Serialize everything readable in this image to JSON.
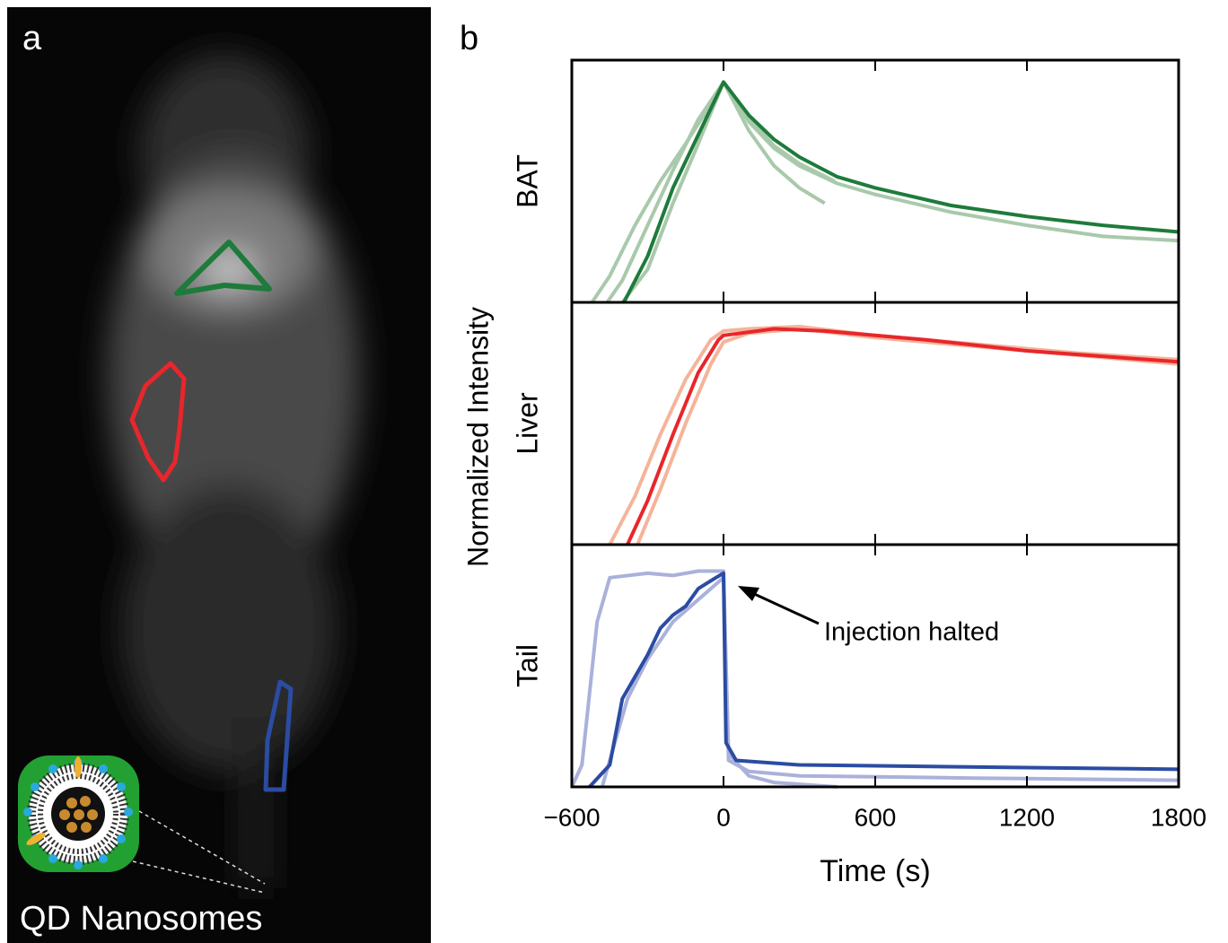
{
  "panel_a": {
    "label": "a",
    "caption": "QD Nanosomes"
  },
  "panel_b": {
    "label": "b",
    "ylabel": "Normalized Intensity"
  },
  "chart_data": [
    {
      "type": "line",
      "ylabel": "BAT",
      "xlim": [
        -600,
        1800
      ],
      "ylim": [
        0,
        1.1
      ],
      "xticks": [
        -600,
        0,
        600,
        1200,
        1800
      ],
      "series": [
        {
          "color": "#a9c9ab",
          "x": [
            -520,
            -450,
            -350,
            -250,
            -150,
            -50,
            0,
            100,
            200,
            300,
            450,
            600,
            900,
            1200,
            1500,
            1800
          ],
          "values": [
            0,
            0.12,
            0.35,
            0.55,
            0.72,
            0.9,
            1.0,
            0.82,
            0.7,
            0.62,
            0.54,
            0.49,
            0.41,
            0.35,
            0.3,
            0.28
          ]
        },
        {
          "color": "#a9c9ab",
          "x": [
            -460,
            -400,
            -300,
            -200,
            -100,
            0,
            100,
            200,
            300,
            400
          ],
          "values": [
            0,
            0.1,
            0.35,
            0.6,
            0.83,
            1.0,
            0.78,
            0.62,
            0.52,
            0.45
          ]
        },
        {
          "color": "#a9c9ab",
          "x": [
            -400,
            -300,
            -200,
            -100,
            0,
            100,
            200,
            300,
            440
          ],
          "values": [
            0,
            0.15,
            0.45,
            0.72,
            1.0,
            0.84,
            0.71,
            0.63,
            0.55
          ]
        },
        {
          "color": "#1e7b3b",
          "x": [
            -394,
            -300,
            -200,
            -100,
            0,
            100,
            200,
            300,
            450,
            600,
            900,
            1200,
            1500,
            1800
          ],
          "values": [
            0,
            0.21,
            0.52,
            0.76,
            1.0,
            0.85,
            0.74,
            0.66,
            0.57,
            0.52,
            0.44,
            0.39,
            0.35,
            0.32
          ]
        }
      ]
    },
    {
      "type": "line",
      "ylabel": "Liver",
      "xlim": [
        -600,
        1800
      ],
      "ylim": [
        0,
        1.1
      ],
      "xticks": [
        -600,
        0,
        600,
        1200,
        1800
      ],
      "series": [
        {
          "color": "#f5b49a",
          "x": [
            -450,
            -350,
            -250,
            -150,
            -50,
            0,
            100,
            300,
            600,
            1000,
            1400,
            1800
          ],
          "values": [
            0,
            0.22,
            0.5,
            0.75,
            0.93,
            0.97,
            0.98,
            0.99,
            0.95,
            0.91,
            0.87,
            0.84
          ]
        },
        {
          "color": "#f5b49a",
          "x": [
            -340,
            -250,
            -150,
            -50,
            0,
            100,
            300,
            600,
            1000,
            1400,
            1800
          ],
          "values": [
            0,
            0.25,
            0.55,
            0.82,
            0.92,
            0.96,
            0.98,
            0.94,
            0.9,
            0.86,
            0.82
          ]
        },
        {
          "color": "#e8262b",
          "x": [
            -380,
            -300,
            -200,
            -100,
            -20,
            0,
            200,
            400,
            800,
            1200,
            1800
          ],
          "values": [
            0,
            0.2,
            0.5,
            0.78,
            0.93,
            0.95,
            0.98,
            0.97,
            0.93,
            0.88,
            0.83
          ]
        }
      ]
    },
    {
      "type": "line",
      "ylabel": "Tail",
      "xlabel": "Time (s)",
      "xlim": [
        -600,
        1800
      ],
      "ylim": [
        0,
        1.1
      ],
      "xticks": [
        {
          "value": -600,
          "label": "−600"
        },
        0,
        600,
        1200,
        1800
      ],
      "annotation": "Injection halted",
      "series": [
        {
          "color": "#aab1da",
          "x": [
            -600,
            -560,
            -500,
            -450,
            -300,
            -200,
            -100,
            0,
            20,
            100,
            300,
            1000,
            1800
          ],
          "values": [
            0,
            0.1,
            0.75,
            0.95,
            0.97,
            0.96,
            0.98,
            0.98,
            0.12,
            0.07,
            0.05,
            0.04,
            0.03
          ]
        },
        {
          "color": "#aab1da",
          "x": [
            -480,
            -380,
            -300,
            -200,
            -100,
            0,
            20,
            100,
            200,
            450
          ],
          "values": [
            0,
            0.4,
            0.58,
            0.75,
            0.85,
            0.95,
            0.15,
            0.05,
            0.02,
            0
          ]
        },
        {
          "color": "#2b4ca2",
          "x": [
            -530,
            -450,
            -400,
            -350,
            -300,
            -250,
            -200,
            -150,
            -100,
            -30,
            0,
            10,
            50,
            300,
            1000,
            1800
          ],
          "values": [
            0,
            0.1,
            0.4,
            0.5,
            0.6,
            0.72,
            0.78,
            0.82,
            0.9,
            0.95,
            0.97,
            0.2,
            0.12,
            0.1,
            0.09,
            0.08
          ]
        }
      ]
    }
  ]
}
